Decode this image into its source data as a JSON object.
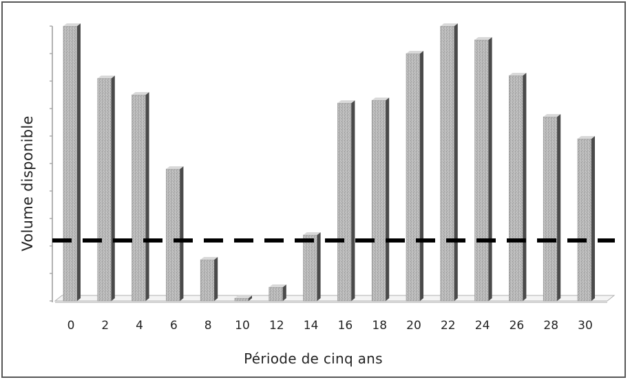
{
  "chart_data": {
    "type": "bar",
    "title": "",
    "xlabel": "Période de cinq ans",
    "ylabel": "Volume disponible",
    "categories": [
      "0",
      "2",
      "4",
      "6",
      "8",
      "10",
      "12",
      "14",
      "16",
      "18",
      "20",
      "22",
      "24",
      "26",
      "28",
      "30"
    ],
    "values": [
      100,
      81,
      75,
      48,
      15,
      1,
      5,
      24,
      72,
      73,
      90,
      100,
      95,
      82,
      67,
      59
    ],
    "ylim": [
      0,
      100
    ],
    "threshold": 22,
    "threshold_style": "dashed black line",
    "grid": false,
    "legend": "none",
    "colors": {
      "bar": "#b5b5b5",
      "bar_side": "#4a4a4a",
      "threshold": "#000000",
      "axis": "#999999"
    }
  }
}
